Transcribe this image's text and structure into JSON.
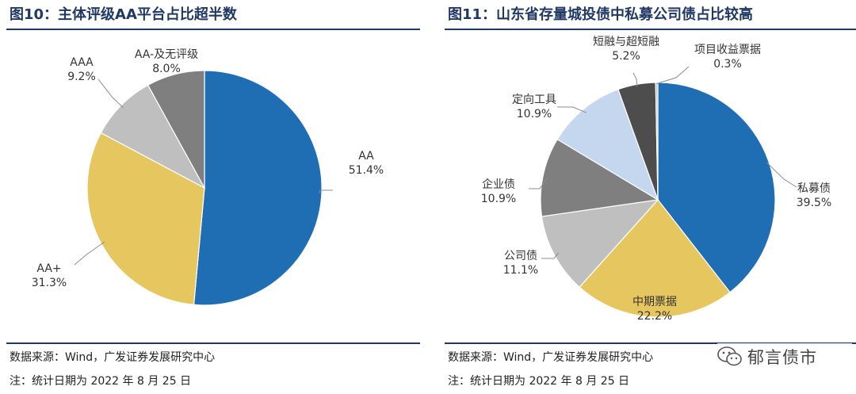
{
  "colors": {
    "title": "#1f3864",
    "rule": "#1f3864",
    "blue": "#1f6db3",
    "yellow": "#e6c65e",
    "lightgray": "#bfbfbf",
    "midgray": "#7f7f7f",
    "lightblue": "#c5d7ef",
    "darkgray": "#4d4d4d"
  },
  "left": {
    "title": "图10：主体评级AA平台占比超半数",
    "note_source": "数据来源：Wind，广发证券发展研究中心",
    "note_date": "注：统计日期为 2022 年 8 月 25 日"
  },
  "right": {
    "title": "图11：山东省存量城投债中私募公司债占比较高",
    "note_source": "数据来源：Wind，广发证券发展研究中心",
    "note_date": "注：统计日期为 2022 年 8 月 25 日"
  },
  "watermark": {
    "text": "郁言债市",
    "icon": "wechat-icon"
  },
  "chart_data": [
    {
      "type": "pie",
      "title": "图10：主体评级AA平台占比超半数",
      "categories": [
        "AA",
        "AA+",
        "AAA",
        "AA-及无评级"
      ],
      "values": [
        51.4,
        31.3,
        9.2,
        8.0
      ],
      "value_labels": [
        "51.4%",
        "31.3%",
        "9.2%",
        "8.0%"
      ],
      "colors": [
        "#1f6db3",
        "#e6c65e",
        "#bfbfbf",
        "#7f7f7f"
      ],
      "start": "12 o'clock",
      "direction": "clockwise",
      "legend": "none"
    },
    {
      "type": "pie",
      "title": "图11：山东省存量城投债中私募公司债占比较高",
      "categories": [
        "私募债",
        "中期票据",
        "公司债",
        "企业债",
        "定向工具",
        "短融与超短融",
        "项目收益票据"
      ],
      "values": [
        39.5,
        22.2,
        11.1,
        10.9,
        10.9,
        5.2,
        0.3
      ],
      "value_labels": [
        "39.5%",
        "22.2%",
        "11.1%",
        "10.9%",
        "10.9%",
        "5.2%",
        "0.3%"
      ],
      "colors": [
        "#1f6db3",
        "#e6c65e",
        "#bfbfbf",
        "#7f7f7f",
        "#c5d7ef",
        "#4d4d4d",
        "#bfbfbf"
      ],
      "start": "12 o'clock",
      "direction": "clockwise",
      "legend": "none"
    }
  ]
}
